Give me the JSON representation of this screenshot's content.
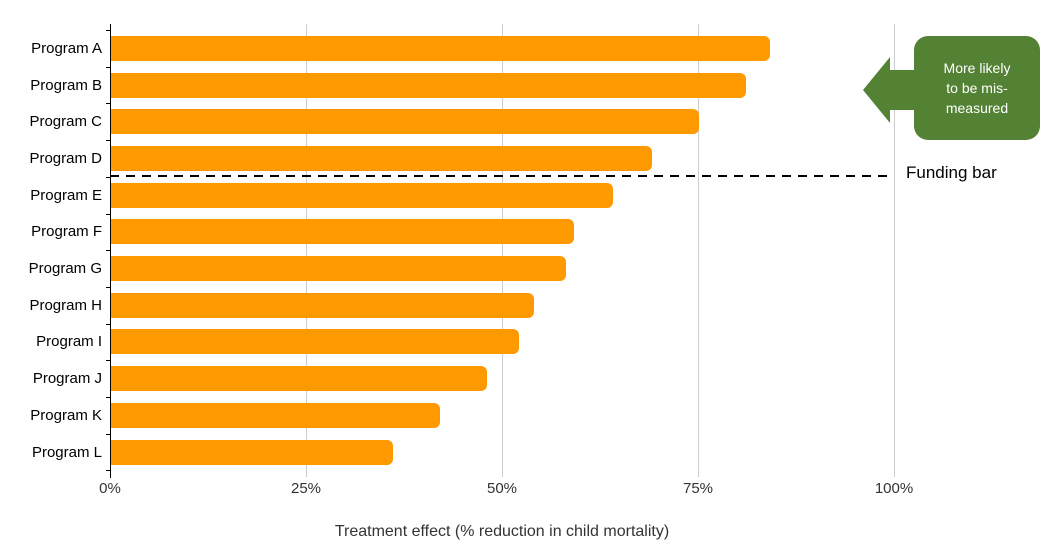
{
  "chart_data": {
    "type": "bar",
    "orientation": "horizontal",
    "categories": [
      "Program A",
      "Program B",
      "Program C",
      "Program D",
      "Program E",
      "Program F",
      "Program G",
      "Program H",
      "Program I",
      "Program J",
      "Program K",
      "Program L"
    ],
    "values": [
      84,
      81,
      75,
      69,
      64,
      59,
      58,
      54,
      52,
      48,
      42,
      36
    ],
    "unit": "%",
    "xlabel": "Treatment effect (% reduction in child mortality)",
    "ylabel": "",
    "title": "",
    "xlim": [
      0,
      100
    ],
    "x_tick_values": [
      0,
      25,
      50,
      75,
      100
    ],
    "x_tick_labels": [
      "0%",
      "25%",
      "50%",
      "75%",
      "100%"
    ],
    "grid": true,
    "legend": "none",
    "bar_color": "#FF9900",
    "annotations": {
      "funding_line": {
        "label": "Funding bar",
        "style": "dashed",
        "position": "between Program D and Program E",
        "span_percent": [
          0,
          100
        ]
      },
      "callout": {
        "text": "More likely to be mis-measured",
        "text_lines": [
          "More likely",
          "to be mis-",
          "measured"
        ],
        "fill_color": "#548235",
        "text_color": "#FFFFFF",
        "arrow_direction": "left"
      }
    }
  }
}
